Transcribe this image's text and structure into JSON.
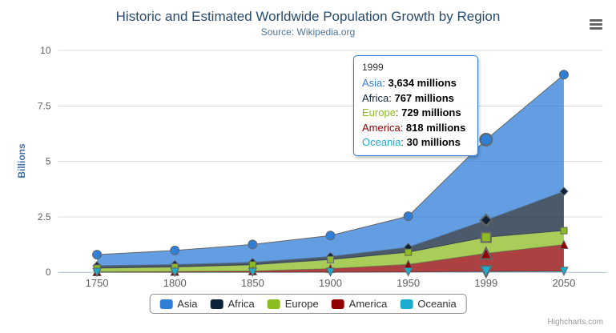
{
  "header": {
    "title": "Historic and Estimated Worldwide Population Growth by Region",
    "subtitle": "Source: Wikipedia.org"
  },
  "credits": "Highcharts.com",
  "chart_data": {
    "type": "area",
    "stacking": "normal",
    "title": "Historic and Estimated Worldwide Population Growth by Region",
    "subtitle": "Source: Wikipedia.org",
    "xlabel": "",
    "ylabel": "Billions",
    "unit": "millions",
    "categories": [
      "1750",
      "1800",
      "1850",
      "1900",
      "1950",
      "1999",
      "2050"
    ],
    "yticks": [
      0,
      2.5,
      5,
      7.5,
      10
    ],
    "ytick_labels": [
      "0",
      "2.5",
      "5",
      "7.5",
      "10"
    ],
    "ylim": [
      0,
      10
    ],
    "grid": "horizontal",
    "legend_position": "bottom-center",
    "hover_index": 5,
    "series": [
      {
        "name": "Asia",
        "color": "#2f7ed8",
        "marker": "circle",
        "values": [
          502,
          635,
          809,
          947,
          1402,
          3634,
          5268
        ]
      },
      {
        "name": "Africa",
        "color": "#0d233a",
        "marker": "diamond",
        "values": [
          106,
          107,
          111,
          133,
          221,
          767,
          1766
        ]
      },
      {
        "name": "Europe",
        "color": "#8bbc21",
        "marker": "square",
        "values": [
          163,
          203,
          276,
          408,
          547,
          729,
          628
        ]
      },
      {
        "name": "America",
        "color": "#910000",
        "marker": "triangle",
        "values": [
          18,
          31,
          54,
          156,
          339,
          818,
          1201
        ]
      },
      {
        "name": "Oceania",
        "color": "#1aadce",
        "marker": "triangle-down",
        "values": [
          2,
          2,
          2,
          6,
          13,
          30,
          46
        ]
      }
    ],
    "colors": {
      "grid": "#d8d8d8",
      "axis_line": "#c0d0e0",
      "axis_label": "#606060",
      "series_line": "#666666",
      "y_title": "#4572a7",
      "title": "#274b6d",
      "subtitle": "#4d759e",
      "tooltip_border": "#2f7ed8",
      "fill_opacity": 0.75
    }
  },
  "tooltip": {
    "header": "1999",
    "rows": [
      {
        "name": "Asia",
        "color": "#2f7ed8",
        "value": "3,634 millions"
      },
      {
        "name": "Africa",
        "color": "#0d233a",
        "value": "767 millions"
      },
      {
        "name": "Europe",
        "color": "#8bbc21",
        "value": "729 millions"
      },
      {
        "name": "America",
        "color": "#910000",
        "value": "818 millions"
      },
      {
        "name": "Oceania",
        "color": "#1aadce",
        "value": "30 millions"
      }
    ]
  }
}
